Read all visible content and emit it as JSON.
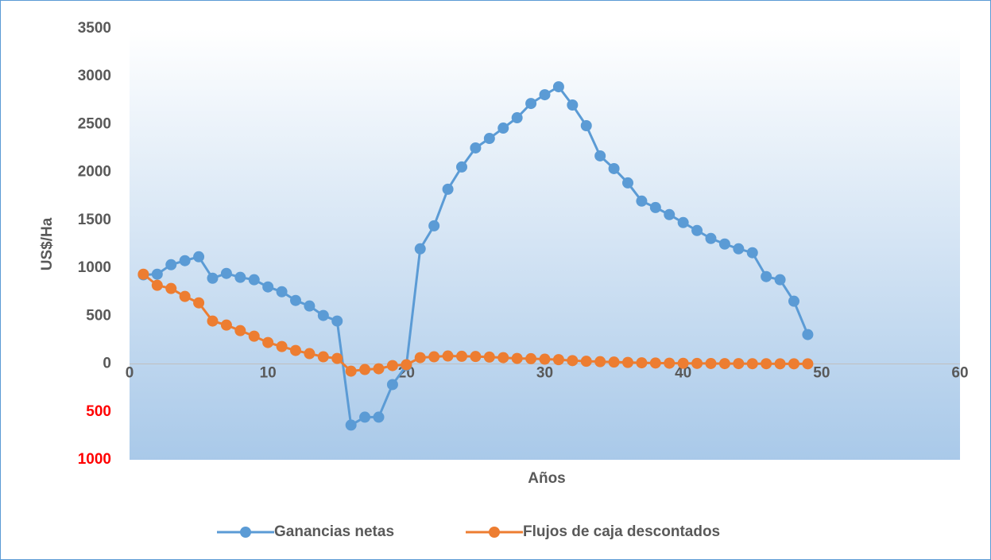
{
  "chart_data": {
    "type": "line",
    "x_label": "Años",
    "y_label": "US$/Ha",
    "x": [
      1,
      2,
      3,
      4,
      5,
      6,
      7,
      8,
      9,
      10,
      11,
      12,
      13,
      14,
      15,
      16,
      17,
      18,
      19,
      20,
      21,
      22,
      23,
      24,
      25,
      26,
      27,
      28,
      29,
      30,
      31,
      32,
      33,
      34,
      35,
      36,
      37,
      38,
      39,
      40,
      41,
      42,
      43,
      44,
      45,
      46,
      47,
      48,
      49
    ],
    "series": [
      {
        "name": "Ganancias netas",
        "color": "#5b9bd5",
        "values": [
          930,
          937,
          1036,
          1078,
          1119,
          895,
          945,
          904,
          879,
          804,
          754,
          663,
          605,
          506,
          448,
          -638,
          -555,
          -555,
          -215,
          -17,
          1202,
          1442,
          1824,
          2056,
          2255,
          2354,
          2462,
          2570,
          2719,
          2810,
          2893,
          2703,
          2487,
          2172,
          2039,
          1890,
          1700,
          1633,
          1559,
          1476,
          1393,
          1310,
          1252,
          1202,
          1161,
          912,
          879,
          655,
          307
        ]
      },
      {
        "name": "Flujos de caja descontados",
        "color": "#ed7d31",
        "values": [
          937,
          821,
          788,
          705,
          638,
          448,
          406,
          348,
          290,
          224,
          182,
          141,
          108,
          75,
          58,
          -75,
          -58,
          -50,
          -17,
          -8,
          66,
          75,
          83,
          80,
          78,
          72,
          66,
          58,
          55,
          50,
          45,
          35,
          28,
          24,
          20,
          16,
          12,
          10,
          8,
          7,
          6,
          5,
          4,
          4,
          3,
          3,
          2,
          2,
          2
        ]
      }
    ],
    "xlim": [
      0,
      60
    ],
    "xticks": [
      0,
      10,
      20,
      30,
      40,
      50,
      60
    ],
    "ylim": [
      -1000,
      3500
    ],
    "yticks": [
      {
        "value": -1000,
        "label": "1000"
      },
      {
        "value": -500,
        "label": "500"
      },
      0,
      500,
      1000,
      1500,
      2000,
      2500,
      3000,
      3500
    ],
    "negative_tick_color": "#ff0000",
    "legend": "bottom"
  }
}
